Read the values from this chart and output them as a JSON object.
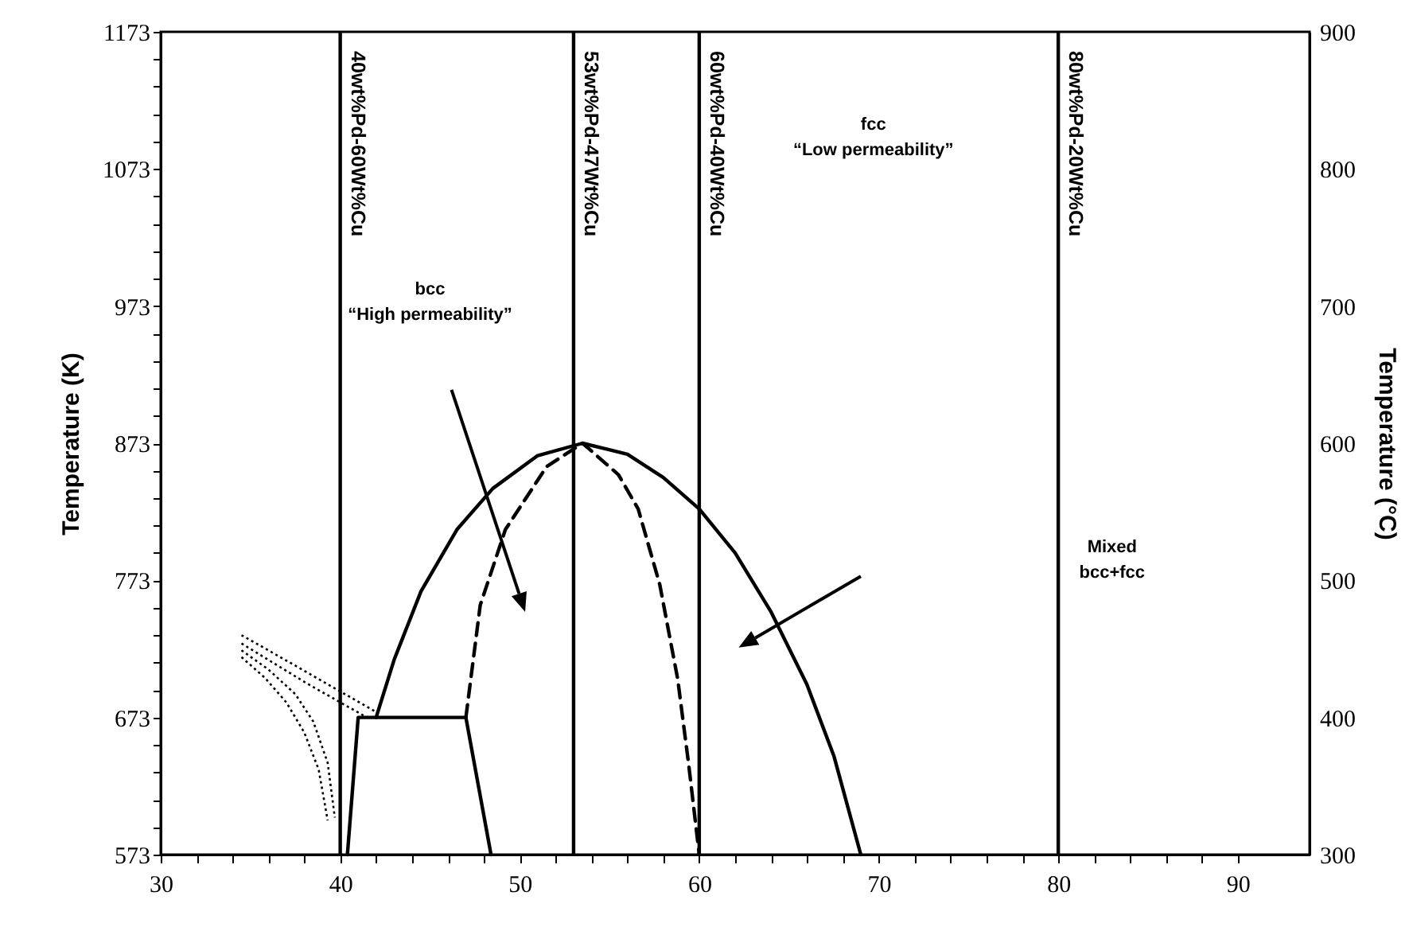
{
  "chart_data": {
    "type": "line",
    "ylabel": "Temperature (K)",
    "y2label": "Temperature (°C)",
    "xlim": [
      30,
      94
    ],
    "xticks": [
      30,
      {
        "value": 32,
        "label": null
      },
      {
        "value": 34,
        "label": null
      },
      {
        "value": 36,
        "label": null
      },
      {
        "value": 38,
        "label": null
      },
      40,
      {
        "value": 42,
        "label": null
      },
      {
        "value": 44,
        "label": null
      },
      {
        "value": 46,
        "label": null
      },
      {
        "value": 48,
        "label": null
      },
      50,
      {
        "value": 52,
        "label": null
      },
      {
        "value": 54,
        "label": null
      },
      {
        "value": 56,
        "label": null
      },
      {
        "value": 58,
        "label": null
      },
      60,
      {
        "value": 62,
        "label": null
      },
      {
        "value": 64,
        "label": null
      },
      {
        "value": 66,
        "label": null
      },
      {
        "value": 68,
        "label": null
      },
      70,
      {
        "value": 72,
        "label": null
      },
      {
        "value": 74,
        "label": null
      },
      {
        "value": 76,
        "label": null
      },
      {
        "value": 78,
        "label": null
      },
      80,
      {
        "value": 82,
        "label": null
      },
      {
        "value": 84,
        "label": null
      },
      {
        "value": 86,
        "label": null
      },
      {
        "value": 88,
        "label": null
      },
      90
    ],
    "ylim": [
      573,
      1173
    ],
    "yticks": [
      573,
      {
        "value": 593,
        "label": null
      },
      {
        "value": 613,
        "label": null
      },
      {
        "value": 633,
        "label": null
      },
      {
        "value": 653,
        "label": null
      },
      673,
      {
        "value": 693,
        "label": null
      },
      {
        "value": 713,
        "label": null
      },
      {
        "value": 733,
        "label": null
      },
      {
        "value": 753,
        "label": null
      },
      773,
      {
        "value": 793,
        "label": null
      },
      {
        "value": 813,
        "label": null
      },
      {
        "value": 833,
        "label": null
      },
      {
        "value": 853,
        "label": null
      },
      873,
      {
        "value": 893,
        "label": null
      },
      {
        "value": 913,
        "label": null
      },
      {
        "value": 933,
        "label": null
      },
      {
        "value": 953,
        "label": null
      },
      973,
      {
        "value": 993,
        "label": null
      },
      {
        "value": 1013,
        "label": null
      },
      {
        "value": 1033,
        "label": null
      },
      {
        "value": 1053,
        "label": null
      },
      1073,
      {
        "value": 1093,
        "label": null
      },
      {
        "value": 1113,
        "label": null
      },
      {
        "value": 1133,
        "label": null
      },
      {
        "value": 1153,
        "label": null
      },
      1173
    ],
    "y2lim": [
      300,
      900
    ],
    "y2ticks": [
      300,
      400,
      500,
      600,
      700,
      800,
      900
    ],
    "grid": false,
    "marker": "none",
    "series": [
      {
        "color": "#000000",
        "line_style": "solid",
        "x": [
          42,
          43,
          44.5,
          46.5,
          48.5,
          51,
          53.5,
          56,
          58,
          60,
          62,
          64,
          66,
          67.5,
          69
        ],
        "values": [
          673,
          715,
          765,
          810,
          840,
          864,
          873,
          865,
          848,
          825,
          793,
          750,
          697,
          645,
          573
        ]
      },
      {
        "color": "#000000",
        "line_style": "dashed",
        "x": [
          47,
          47.8,
          49.2,
          51.5,
          53.5,
          55.5,
          56.6,
          57.8,
          58.8,
          59.4,
          60
        ],
        "values": [
          673,
          755,
          810,
          856,
          873,
          850,
          825,
          770,
          701,
          640,
          573
        ]
      },
      {
        "color": "#000000",
        "line_style": "solid",
        "x": [
          40.4,
          41,
          47,
          48.4
        ],
        "values": [
          573,
          673,
          673,
          573
        ]
      },
      {
        "color": "#000000",
        "line_style": "dotted",
        "x": [
          34.5,
          36,
          38,
          40,
          42
        ],
        "values": [
          733,
          722,
          707,
          692,
          677
        ]
      },
      {
        "color": "#000000",
        "line_style": "dotted",
        "x": [
          34.5,
          36,
          38,
          40,
          41.5
        ],
        "values": [
          727,
          715,
          699,
          684,
          673
        ]
      },
      {
        "color": "#000000",
        "line_style": "dotted",
        "x": [
          34.5,
          36,
          37.5,
          38.5,
          39.3,
          39.7
        ],
        "values": [
          722,
          708,
          690,
          670,
          640,
          600
        ]
      },
      {
        "color": "#000000",
        "line_style": "dotted",
        "x": [
          34.5,
          35.8,
          37,
          38,
          38.8,
          39.3
        ],
        "values": [
          717,
          702,
          684,
          662,
          635,
          598
        ]
      }
    ],
    "ref_lines": [
      {
        "axis": "x",
        "value": 40,
        "label": "40wt%Pd-60Wt%Cu",
        "color": "#000000",
        "line_style": "solid"
      },
      {
        "axis": "x",
        "value": 53,
        "label": "53wt%Pd-47Wt%Cu",
        "color": "#000000",
        "line_style": "solid"
      },
      {
        "axis": "x",
        "value": 60,
        "label": "60wt%Pd-40Wt%Cu",
        "color": "#000000",
        "line_style": "solid"
      },
      {
        "axis": "x",
        "value": 80,
        "label": "80wt%Pd-20Wt%Cu",
        "color": "#000000",
        "line_style": "solid"
      }
    ],
    "annotations": [
      "fcc\n“Low permeability”",
      "bcc\n“High permeability”",
      "Mixed\nbcc+fcc"
    ]
  }
}
